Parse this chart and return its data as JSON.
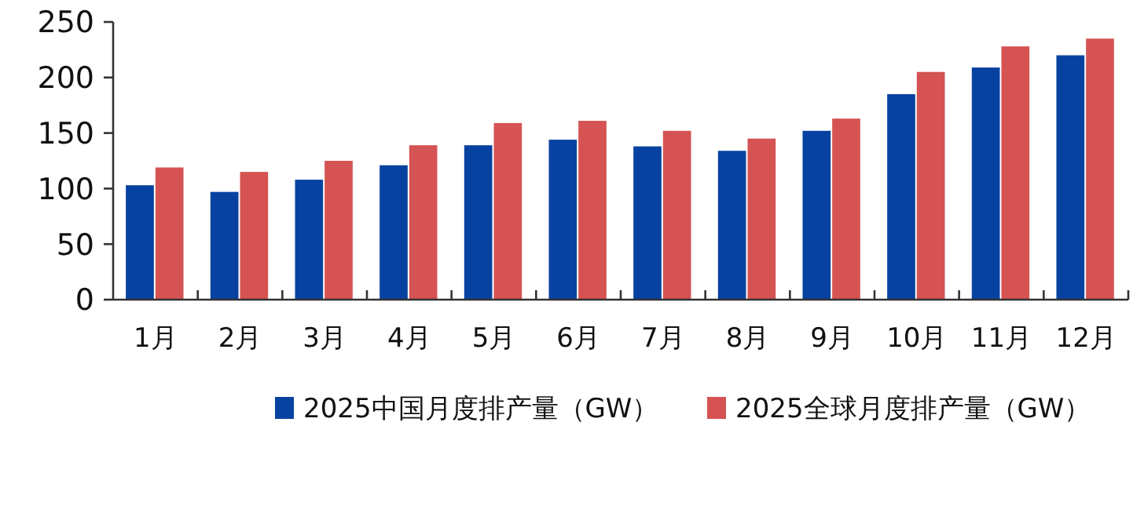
{
  "chart_data": {
    "type": "bar",
    "categories": [
      "1月",
      "2月",
      "3月",
      "4月",
      "5月",
      "6月",
      "7月",
      "8月",
      "9月",
      "10月",
      "11月",
      "12月"
    ],
    "series": [
      {
        "name": "2025中国月度排产量（GW）",
        "color": "#0842a0",
        "values": [
          103,
          97,
          108,
          121,
          139,
          144,
          138,
          134,
          152,
          185,
          209,
          220
        ]
      },
      {
        "name": "2025全球月度排产量（GW）",
        "color": "#d55353",
        "values": [
          119,
          115,
          125,
          139,
          159,
          161,
          152,
          145,
          163,
          205,
          228,
          235
        ]
      }
    ],
    "ylim": [
      0,
      250
    ],
    "yticks": [
      0,
      50,
      100,
      150,
      200,
      250
    ],
    "grid": false,
    "legend": "bottom"
  }
}
